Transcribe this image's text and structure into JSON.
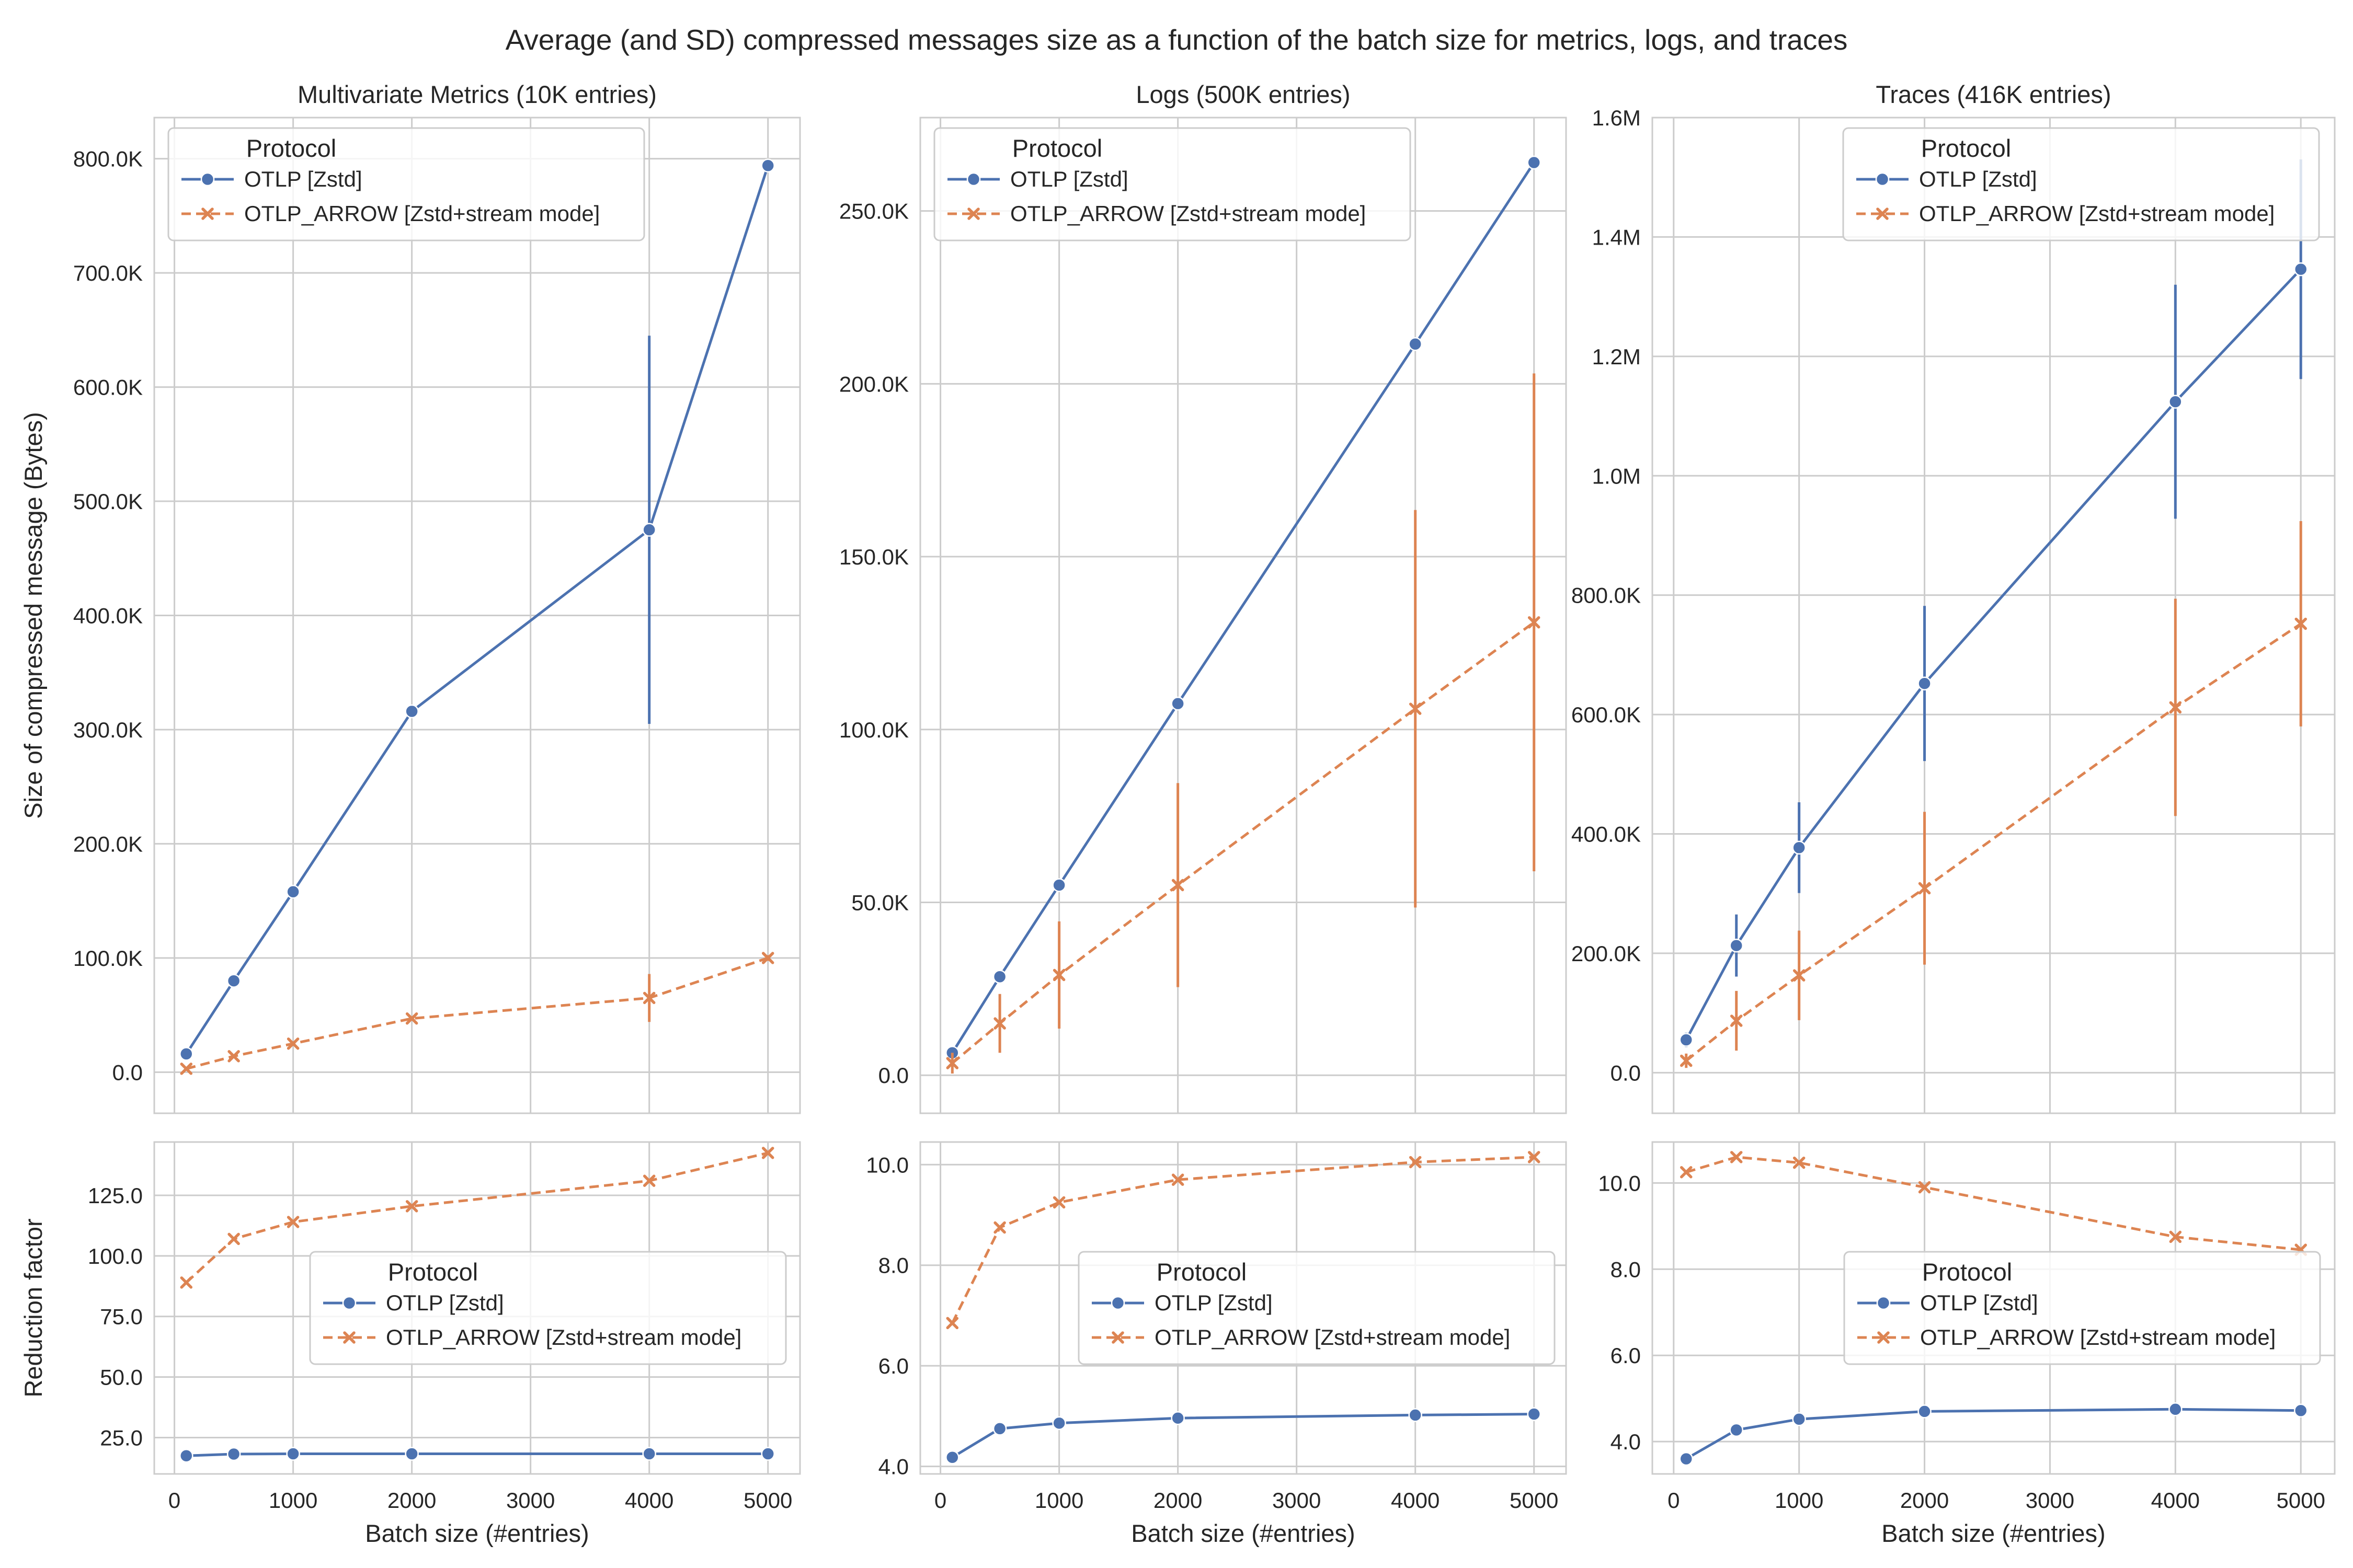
{
  "suptitle": "Average (and SD) compressed messages size as a function of the batch size for metrics, logs, and traces",
  "colors": {
    "otlp": "#4c72b0",
    "arrow": "#dd8452",
    "grid": "#cccccc",
    "text": "#262626"
  },
  "legend": {
    "title": "Protocol",
    "entries": [
      "OTLP [Zstd]",
      "OTLP_ARROW [Zstd+stream mode]"
    ]
  },
  "chart_data": [
    {
      "type": "line",
      "panel": "top-1",
      "title": "Multivariate Metrics (10K entries)",
      "xlabel": "",
      "ylabel": "Size of compressed message (Bytes)",
      "x": [
        100,
        500,
        1000,
        2000,
        4000,
        5000
      ],
      "xlim": [
        -170,
        5270
      ],
      "xticks": [
        0,
        1000,
        2000,
        3000,
        4000,
        5000
      ],
      "ylim": [
        -36000,
        836000
      ],
      "yticks": [
        0,
        100000,
        200000,
        300000,
        400000,
        500000,
        600000,
        700000,
        800000
      ],
      "ytick_labels": [
        "0.0",
        "100.0K",
        "200.0K",
        "300.0K",
        "400.0K",
        "500.0K",
        "600.0K",
        "700.0K",
        "800.0K"
      ],
      "legend_position": "top-left",
      "series": [
        {
          "name": "OTLP [Zstd]",
          "values": [
            16000,
            80000,
            158000,
            316000,
            475000,
            794000
          ],
          "sd": [
            2000,
            2000,
            2000,
            3000,
            170000,
            4000
          ]
        },
        {
          "name": "OTLP_ARROW [Zstd+stream mode]",
          "values": [
            3000,
            14000,
            25000,
            47000,
            65000,
            100000
          ],
          "sd": [
            500,
            1500,
            2000,
            2000,
            21000,
            2500
          ]
        }
      ]
    },
    {
      "type": "line",
      "panel": "top-2",
      "title": "Logs (500K entries)",
      "xlabel": "",
      "ylabel": "",
      "x": [
        100,
        500,
        1000,
        2000,
        4000,
        5000
      ],
      "xlim": [
        -170,
        5270
      ],
      "xticks": [
        0,
        1000,
        2000,
        3000,
        4000,
        5000
      ],
      "ylim": [
        -11000,
        277000
      ],
      "yticks": [
        0,
        50000,
        100000,
        150000,
        200000,
        250000
      ],
      "ytick_labels": [
        "0.0",
        "50.0K",
        "100.0K",
        "150.0K",
        "200.0K",
        "250.0K"
      ],
      "legend_position": "top-left",
      "series": [
        {
          "name": "OTLP [Zstd]",
          "values": [
            6500,
            28500,
            55000,
            107500,
            211500,
            264000
          ],
          "sd": [
            300,
            500,
            600,
            800,
            1000,
            1200
          ]
        },
        {
          "name": "OTLP_ARROW [Zstd+stream mode]",
          "values": [
            3500,
            15000,
            29000,
            55000,
            106000,
            131000
          ],
          "sd": [
            3000,
            8500,
            15500,
            29500,
            57500,
            72000
          ]
        }
      ]
    },
    {
      "type": "line",
      "panel": "top-3",
      "title": "Traces (416K entries)",
      "xlabel": "",
      "ylabel": "",
      "x": [
        100,
        500,
        1000,
        2000,
        4000,
        5000
      ],
      "xlim": [
        -170,
        5270
      ],
      "xticks": [
        0,
        1000,
        2000,
        3000,
        4000,
        5000
      ],
      "ylim": [
        -68000,
        1600000
      ],
      "yticks": [
        0,
        200000,
        400000,
        600000,
        800000,
        1000000,
        1200000,
        1400000,
        1600000
      ],
      "ytick_labels": [
        "0.0",
        "200.0K",
        "400.0K",
        "600.0K",
        "800.0K",
        "1.0M",
        "1.2M",
        "1.4M",
        "1.6M"
      ],
      "legend_position": "top-right",
      "series": [
        {
          "name": "OTLP [Zstd]",
          "values": [
            55000,
            213000,
            377000,
            652000,
            1124000,
            1346000
          ],
          "sd": [
            12000,
            52000,
            76000,
            130000,
            196000,
            184000
          ]
        },
        {
          "name": "OTLP_ARROW [Zstd+stream mode]",
          "values": [
            20000,
            87000,
            163000,
            309000,
            612000,
            752000
          ],
          "sd": [
            12000,
            50000,
            75000,
            128000,
            182000,
            172000
          ]
        }
      ]
    },
    {
      "type": "line",
      "panel": "bottom-1",
      "title": "",
      "xlabel": "Batch size (#entries)",
      "ylabel": "Reduction factor",
      "x": [
        100,
        500,
        1000,
        2000,
        4000,
        5000
      ],
      "xlim": [
        -170,
        5270
      ],
      "xticks": [
        0,
        1000,
        2000,
        3000,
        4000,
        5000
      ],
      "xtick_labels": [
        "0",
        "1000",
        "2000",
        "3000",
        "4000",
        "5000"
      ],
      "ylim": [
        10,
        147
      ],
      "yticks": [
        25,
        50,
        75,
        100,
        125
      ],
      "ytick_labels": [
        "25.0",
        "50.0",
        "75.0",
        "100.0",
        "125.0"
      ],
      "legend_position": "center-right",
      "series": [
        {
          "name": "OTLP [Zstd]",
          "values": [
            17.5,
            18.2,
            18.3,
            18.3,
            18.3,
            18.3
          ]
        },
        {
          "name": "OTLP_ARROW [Zstd+stream mode]",
          "values": [
            89,
            107,
            114,
            120.5,
            131,
            142.5
          ]
        }
      ]
    },
    {
      "type": "line",
      "panel": "bottom-2",
      "title": "",
      "xlabel": "Batch size (#entries)",
      "ylabel": "",
      "x": [
        100,
        500,
        1000,
        2000,
        4000,
        5000
      ],
      "xlim": [
        -170,
        5270
      ],
      "xticks": [
        0,
        1000,
        2000,
        3000,
        4000,
        5000
      ],
      "xtick_labels": [
        "0",
        "1000",
        "2000",
        "3000",
        "4000",
        "5000"
      ],
      "ylim": [
        3.85,
        10.45
      ],
      "yticks": [
        4,
        6,
        8,
        10
      ],
      "ytick_labels": [
        "4.0",
        "6.0",
        "8.0",
        "10.0"
      ],
      "legend_position": "center-right",
      "series": [
        {
          "name": "OTLP [Zstd]",
          "values": [
            4.18,
            4.75,
            4.86,
            4.96,
            5.02,
            5.04
          ]
        },
        {
          "name": "OTLP_ARROW [Zstd+stream mode]",
          "values": [
            6.85,
            8.75,
            9.25,
            9.7,
            10.05,
            10.15
          ]
        }
      ]
    },
    {
      "type": "line",
      "panel": "bottom-3",
      "title": "",
      "xlabel": "Batch size (#entries)",
      "ylabel": "",
      "x": [
        100,
        500,
        1000,
        2000,
        4000,
        5000
      ],
      "xlim": [
        -170,
        5270
      ],
      "xticks": [
        0,
        1000,
        2000,
        3000,
        4000,
        5000
      ],
      "xtick_labels": [
        "0",
        "1000",
        "2000",
        "3000",
        "4000",
        "5000"
      ],
      "ylim": [
        3.25,
        10.95
      ],
      "yticks": [
        4,
        6,
        8,
        10
      ],
      "ytick_labels": [
        "4.0",
        "6.0",
        "8.0",
        "10.0"
      ],
      "legend_position": "center-right",
      "series": [
        {
          "name": "OTLP [Zstd]",
          "values": [
            3.6,
            4.27,
            4.52,
            4.7,
            4.75,
            4.72
          ]
        },
        {
          "name": "OTLP_ARROW [Zstd+stream mode]",
          "values": [
            10.25,
            10.6,
            10.47,
            9.9,
            8.75,
            8.45
          ]
        }
      ]
    }
  ]
}
